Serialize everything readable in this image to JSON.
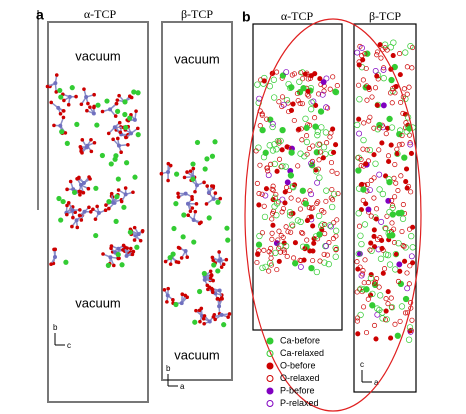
{
  "panel_a": {
    "label": "a",
    "columns": [
      {
        "title": "α-TCP",
        "vacuum_top": "vacuum",
        "vacuum_bottom": "vacuum",
        "axis_up": "b",
        "axis_right": "c"
      },
      {
        "title": "β-TCP",
        "vacuum_top": "vacuum",
        "vacuum_bottom": "vacuum",
        "axis_up": "b",
        "axis_right": "a"
      }
    ]
  },
  "panel_b": {
    "label": "b",
    "columns": [
      {
        "title": "α-TCP"
      },
      {
        "title": "β-TCP",
        "axis_up": "c",
        "axis_right": "a"
      }
    ],
    "legend": [
      "Ca-before",
      "Ca-relaxed",
      "O-before",
      "O-relaxed",
      "P-before",
      "P-relaxed"
    ]
  }
}
